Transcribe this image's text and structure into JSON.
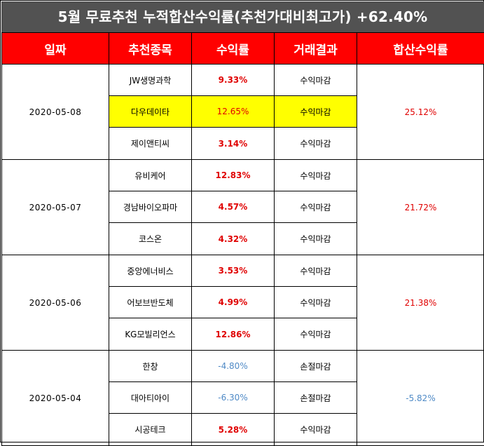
{
  "title": "5월 무료추천 누적합산수익률(추천가대비최고가) +62.40%",
  "headers": [
    "일짜",
    "추천종목",
    "수익률",
    "거래결과",
    "합산수익률"
  ],
  "groups": [
    {
      "date": "2020-05-08",
      "total": "25.12%",
      "total_sign": "pos",
      "rows": [
        {
          "stock": "JW생명과학",
          "return": "9.33%",
          "sign": "pos",
          "result": "수익마감",
          "highlight": false
        },
        {
          "stock": "다우데이타",
          "return": "12.65%",
          "sign": "pos",
          "result": "수익마감",
          "highlight": true
        },
        {
          "stock": "제이앤티씨",
          "return": "3.14%",
          "sign": "pos",
          "result": "수익마감",
          "highlight": false
        }
      ]
    },
    {
      "date": "2020-05-07",
      "total": "21.72%",
      "total_sign": "pos",
      "rows": [
        {
          "stock": "유비케어",
          "return": "12.83%",
          "sign": "pos",
          "result": "수익마감",
          "highlight": false
        },
        {
          "stock": "경남바이오파마",
          "return": "4.57%",
          "sign": "pos",
          "result": "수익마감",
          "highlight": false
        },
        {
          "stock": "코스온",
          "return": "4.32%",
          "sign": "pos",
          "result": "수익마감",
          "highlight": false
        }
      ]
    },
    {
      "date": "2020-05-06",
      "total": "21.38%",
      "total_sign": "pos",
      "rows": [
        {
          "stock": "중앙에너비스",
          "return": "3.53%",
          "sign": "pos",
          "result": "수익마감",
          "highlight": false
        },
        {
          "stock": "어보브반도체",
          "return": "4.99%",
          "sign": "pos",
          "result": "수익마감",
          "highlight": false
        },
        {
          "stock": "KG모빌리언스",
          "return": "12.86%",
          "sign": "pos",
          "result": "수익마감",
          "highlight": false
        }
      ]
    },
    {
      "date": "2020-05-04",
      "total": "-5.82%",
      "total_sign": "neg",
      "rows": [
        {
          "stock": "한창",
          "return": "-4.80%",
          "sign": "neg",
          "result": "손절마감",
          "highlight": false
        },
        {
          "stock": "대아티아이",
          "return": "-6.30%",
          "sign": "neg",
          "result": "손절마감",
          "highlight": false
        },
        {
          "stock": "시공테크",
          "return": "5.28%",
          "sign": "pos",
          "result": "수익마감",
          "highlight": false
        }
      ]
    }
  ],
  "colors": {
    "title_bg": "#525252",
    "header_bg": "#ff0000",
    "positive": "#e00000",
    "negative": "#4f8ac6",
    "highlight": "#ffff00"
  }
}
